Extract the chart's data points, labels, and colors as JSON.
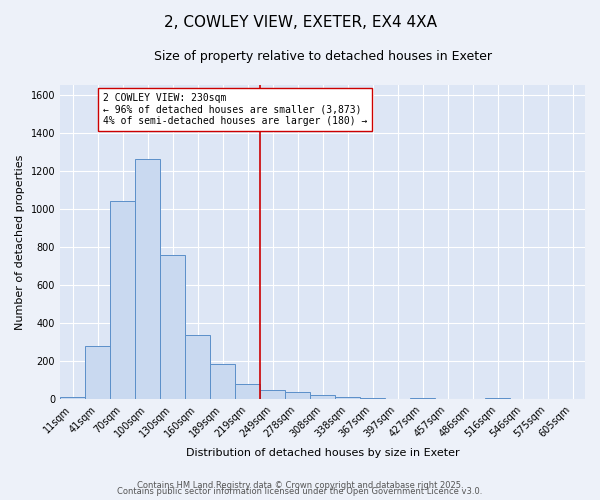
{
  "title": "2, COWLEY VIEW, EXETER, EX4 4XA",
  "subtitle": "Size of property relative to detached houses in Exeter",
  "xlabel": "Distribution of detached houses by size in Exeter",
  "ylabel": "Number of detached properties",
  "bar_labels": [
    "11sqm",
    "41sqm",
    "70sqm",
    "100sqm",
    "130sqm",
    "160sqm",
    "189sqm",
    "219sqm",
    "249sqm",
    "278sqm",
    "308sqm",
    "338sqm",
    "367sqm",
    "397sqm",
    "427sqm",
    "457sqm",
    "486sqm",
    "516sqm",
    "546sqm",
    "575sqm",
    "605sqm"
  ],
  "bar_values": [
    10,
    280,
    1040,
    1260,
    760,
    335,
    185,
    80,
    50,
    38,
    25,
    10,
    7,
    0,
    8,
    0,
    0,
    5,
    0,
    0,
    0
  ],
  "bar_color": "#c9d9f0",
  "bar_edge_color": "#5b8fc9",
  "vline_x": 7.5,
  "vline_color": "#cc0000",
  "annotation_text": "2 COWLEY VIEW: 230sqm\n← 96% of detached houses are smaller (3,873)\n4% of semi-detached houses are larger (180) →",
  "annotation_box_color": "#ffffff",
  "annotation_box_edge": "#cc0000",
  "ylim": [
    0,
    1650
  ],
  "yticks": [
    0,
    200,
    400,
    600,
    800,
    1000,
    1200,
    1400,
    1600
  ],
  "bg_color": "#dde6f5",
  "fig_bg_color": "#edf1f9",
  "footer1": "Contains HM Land Registry data © Crown copyright and database right 2025.",
  "footer2": "Contains public sector information licensed under the Open Government Licence v3.0.",
  "title_fontsize": 11,
  "subtitle_fontsize": 9,
  "annot_fontsize": 7,
  "axis_fontsize": 8,
  "tick_fontsize": 7
}
